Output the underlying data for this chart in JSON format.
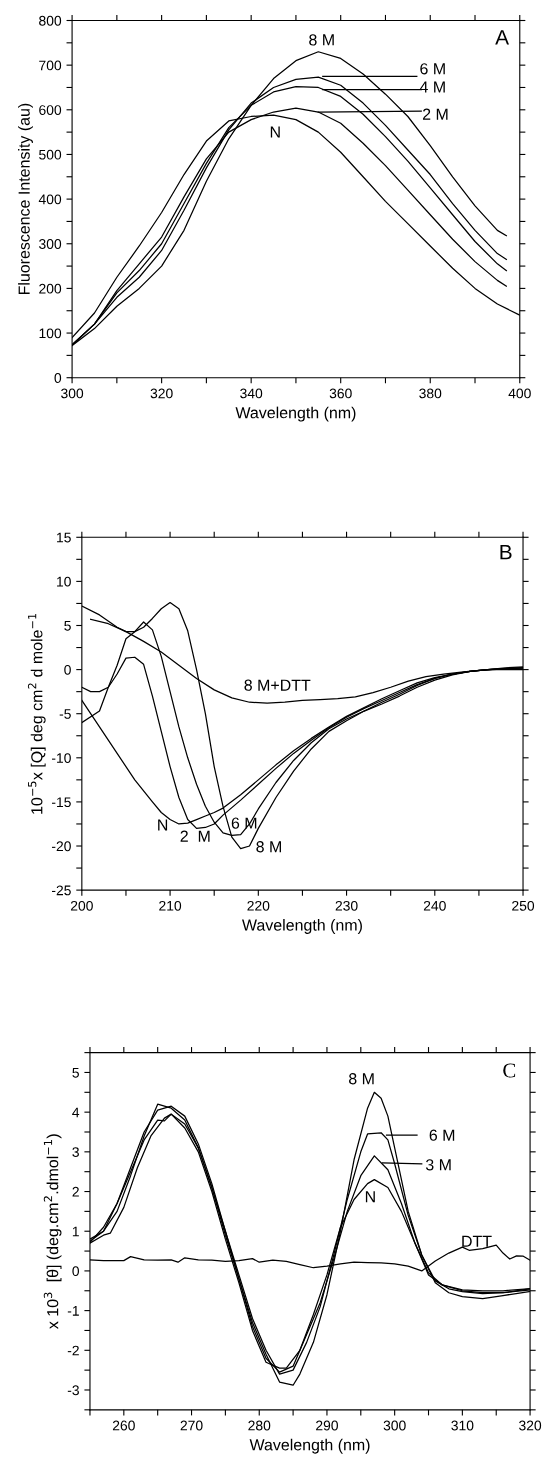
{
  "chart_data": [
    {
      "type": "line",
      "xlabel": "Wavelength (nm)",
      "ylabel": "Fluorescence Intensity (au)",
      "xlim": [
        300,
        400
      ],
      "ylim": [
        0,
        800
      ],
      "xticks": [
        300,
        {
          "value": 310,
          "label": null
        },
        320,
        {
          "value": 330,
          "label": null
        },
        340,
        {
          "value": 350,
          "label": null
        },
        360,
        {
          "value": 370,
          "label": null
        },
        380,
        {
          "value": 390,
          "label": null
        },
        400
      ],
      "yticks": [
        0,
        {
          "value": 50,
          "label": null
        },
        100,
        {
          "value": 150,
          "label": null
        },
        200,
        {
          "value": 250,
          "label": null
        },
        300,
        {
          "value": 350,
          "label": null
        },
        400,
        {
          "value": 450,
          "label": null
        },
        500,
        {
          "value": 550,
          "label": null
        },
        600,
        {
          "value": 650,
          "label": null
        },
        700,
        {
          "value": 750,
          "label": null
        },
        800
      ],
      "grid": false,
      "marker": "none",
      "line_style": "solid",
      "series": [
        {
          "color": "#000000",
          "x": [
            300,
            305,
            310,
            315,
            320,
            325,
            330,
            335,
            340,
            345,
            350,
            355,
            360,
            365,
            370,
            375,
            380,
            385,
            390,
            395,
            400
          ],
          "values": [
            90,
            145,
            225,
            295,
            370,
            455,
            530,
            575,
            585,
            588,
            578,
            550,
            505,
            450,
            395,
            345,
            295,
            245,
            200,
            165,
            140
          ]
        },
        {
          "color": "#000000",
          "x": [
            300,
            305,
            310,
            315,
            320,
            325,
            330,
            335,
            340,
            345,
            350,
            355,
            360,
            365,
            370,
            375,
            380,
            385,
            390,
            395,
            397
          ],
          "values": [
            72,
            110,
            160,
            200,
            250,
            330,
            440,
            535,
            610,
            670,
            710,
            730,
            715,
            680,
            635,
            585,
            520,
            450,
            385,
            330,
            318
          ]
        },
        {
          "color": "#000000",
          "x": [
            300,
            305,
            310,
            315,
            320,
            325,
            330,
            335,
            340,
            345,
            350,
            355,
            360,
            365,
            370,
            375,
            380,
            385,
            390,
            395,
            397
          ],
          "values": [
            74,
            120,
            180,
            225,
            285,
            375,
            470,
            555,
            615,
            650,
            668,
            673,
            655,
            615,
            565,
            510,
            455,
            390,
            330,
            278,
            265
          ]
        },
        {
          "color": "#000000",
          "x": [
            300,
            305,
            310,
            315,
            320,
            325,
            330,
            335,
            340,
            345,
            350,
            355,
            360,
            365,
            370,
            375,
            380,
            385,
            390,
            395,
            397
          ],
          "values": [
            74,
            120,
            190,
            240,
            300,
            390,
            480,
            560,
            610,
            640,
            652,
            650,
            630,
            590,
            540,
            485,
            425,
            365,
            305,
            255,
            240
          ]
        },
        {
          "color": "#000000",
          "x": [
            300,
            305,
            310,
            315,
            320,
            325,
            330,
            335,
            340,
            345,
            350,
            355,
            360,
            365,
            370,
            375,
            380,
            385,
            390,
            395,
            397
          ],
          "values": [
            73,
            120,
            195,
            255,
            315,
            405,
            490,
            550,
            578,
            595,
            604,
            595,
            570,
            525,
            475,
            420,
            365,
            310,
            260,
            218,
            205
          ]
        },
        {
          "color": "#000000",
          "x": [
            356,
            377
          ],
          "values": [
            675,
            675
          ]
        },
        {
          "color": "#000000",
          "x": [
            356,
            378
          ],
          "values": [
            645,
            645
          ]
        },
        {
          "color": "#000000",
          "x": [
            355,
            378
          ],
          "values": [
            595,
            597
          ]
        }
      ],
      "annotations": [
        "8 M",
        "6 M",
        "4 M",
        "2 M",
        "N",
        "A"
      ]
    },
    {
      "type": "line",
      "xlabel": "Wavelength (nm)",
      "ylabel": "10$^{−5}$x [Q] deg cm$^{2}$ d mole$^{−1}$",
      "xlim": [
        200,
        250
      ],
      "ylim": [
        -25,
        15
      ],
      "xticks": [
        200,
        {
          "value": 205,
          "label": null
        },
        210,
        {
          "value": 215,
          "label": null
        },
        220,
        {
          "value": 225,
          "label": null
        },
        230,
        {
          "value": 235,
          "label": null
        },
        240,
        {
          "value": 245,
          "label": null
        },
        250
      ],
      "yticks": [
        -25,
        {
          "value": -22.5,
          "label": null
        },
        -20,
        {
          "value": -17.5,
          "label": null
        },
        -15,
        {
          "value": -12.5,
          "label": null
        },
        -10,
        {
          "value": -7.5,
          "label": null
        },
        -5,
        {
          "value": -2.5,
          "label": null
        },
        0,
        {
          "value": 2.5,
          "label": null
        },
        5,
        {
          "value": 7.5,
          "label": null
        },
        10,
        {
          "value": 12.5,
          "label": null
        },
        15
      ],
      "grid": false,
      "marker": "none",
      "line_style": "solid",
      "series": [
        {
          "color": "#000000",
          "x": [
            200,
            202,
            204,
            206,
            208,
            209,
            210,
            211,
            212,
            213,
            214,
            215,
            216,
            218,
            220,
            222,
            224,
            226,
            228,
            230,
            232,
            234,
            236,
            238,
            240,
            242,
            244,
            246,
            248,
            250
          ],
          "values": [
            -3.5,
            -6.5,
            -9.5,
            -12.5,
            -15,
            -16.2,
            -17,
            -17.5,
            -17.4,
            -17,
            -16.6,
            -16.2,
            -15.7,
            -14.2,
            -12.5,
            -10.8,
            -9.2,
            -7.8,
            -6.5,
            -5.3,
            -4.3,
            -3.3,
            -2.4,
            -1.5,
            -0.9,
            -0.5,
            -0.2,
            0,
            0.1,
            0.2
          ]
        },
        {
          "color": "#000000",
          "x": [
            200,
            201,
            202,
            203,
            204,
            205,
            206,
            207,
            208,
            209,
            210,
            211,
            212,
            213,
            214,
            215,
            216,
            218,
            220,
            222,
            224,
            226,
            228,
            230,
            232,
            234,
            236,
            238,
            240,
            242,
            244,
            246,
            248,
            250
          ],
          "values": [
            -2,
            -2.5,
            -2.5,
            -2,
            -0.5,
            1.3,
            1.4,
            0.6,
            -3,
            -7,
            -11,
            -14.5,
            -17,
            -18,
            -17.9,
            -17.5,
            -16.5,
            -14.8,
            -13,
            -11.2,
            -9.5,
            -8,
            -6.6,
            -5.4,
            -4.4,
            -3.5,
            -2.6,
            -1.7,
            -1,
            -0.5,
            -0.2,
            0,
            0.2,
            0.3
          ]
        },
        {
          "color": "#000000",
          "x": [
            200,
            202,
            203,
            204,
            205,
            206,
            207,
            208,
            209,
            210,
            211,
            212,
            213,
            214,
            215,
            216,
            217,
            218,
            219,
            220,
            222,
            224,
            226,
            228,
            230,
            232,
            234,
            236,
            238,
            240,
            242,
            244,
            246,
            248,
            250
          ],
          "values": [
            -6,
            -4.7,
            -2,
            0.5,
            3.5,
            4.3,
            5.4,
            4.5,
            1.5,
            -2.5,
            -6.5,
            -10,
            -13,
            -15.5,
            -17.3,
            -18.5,
            -18.8,
            -18.7,
            -17.5,
            -15.8,
            -12.8,
            -10.3,
            -8.3,
            -6.7,
            -5.6,
            -4.7,
            -3.9,
            -3,
            -2,
            -1.2,
            -0.6,
            -0.2,
            0,
            0.1,
            0.2
          ]
        },
        {
          "color": "#000000",
          "x": [
            200,
            202,
            204,
            205,
            206,
            207,
            208,
            209,
            210,
            211,
            212,
            213,
            214,
            215,
            216,
            217,
            218,
            219,
            220,
            222,
            224,
            226,
            228,
            230,
            232,
            234,
            236,
            238,
            240,
            242,
            244,
            246,
            248,
            250
          ],
          "values": [
            7.2,
            6.2,
            4.8,
            4.3,
            4.3,
            4.8,
            5.8,
            6.9,
            7.6,
            6.9,
            4.4,
            0,
            -5,
            -11,
            -15.5,
            -19,
            -20.3,
            -20,
            -18,
            -14.5,
            -11.5,
            -9,
            -7,
            -5.8,
            -4.7,
            -3.7,
            -2.8,
            -1.8,
            -1,
            -0.5,
            -0.2,
            0,
            0.1,
            0.2
          ]
        },
        {
          "color": "#000000",
          "x": [
            201,
            203,
            205,
            207,
            209,
            211,
            213,
            215,
            217,
            219,
            221,
            223,
            225,
            227,
            229,
            231,
            233,
            235,
            237,
            239,
            241,
            243,
            245,
            247,
            250
          ],
          "values": [
            5.7,
            5.2,
            4.3,
            3.2,
            2,
            0.5,
            -1,
            -2.3,
            -3.2,
            -3.7,
            -3.8,
            -3.7,
            -3.5,
            -3.4,
            -3.3,
            -3.1,
            -2.6,
            -2,
            -1.3,
            -0.8,
            -0.5,
            -0.3,
            -0.1,
            0,
            0
          ]
        }
      ],
      "annotations": [
        "8 M+DTT",
        "N",
        "2  M",
        "6 M",
        "8 M",
        "B"
      ]
    },
    {
      "type": "line",
      "xlabel": "Wavelength (nm)",
      "ylabel": "x 10$^{3}$  [θ] (deg.cm$^{2}$.dmol$^{−1}$)",
      "xlim": [
        255,
        320
      ],
      "ylim": [
        -3.5,
        5.5
      ],
      "xticks": [
        {
          "value": 255,
          "label": null
        },
        260,
        {
          "value": 265,
          "label": null
        },
        270,
        {
          "value": 275,
          "label": null
        },
        280,
        {
          "value": 285,
          "label": null
        },
        290,
        {
          "value": 295,
          "label": null
        },
        300,
        {
          "value": 305,
          "label": null
        },
        310,
        {
          "value": 315,
          "label": null
        },
        320
      ],
      "yticks": [
        {
          "value": -3.5,
          "label": null
        },
        -3,
        {
          "value": -2.5,
          "label": null
        },
        -2,
        {
          "value": -1.5,
          "label": null
        },
        -1,
        {
          "value": -0.5,
          "label": null
        },
        0,
        {
          "value": 0.5,
          "label": null
        },
        1,
        {
          "value": 1.5,
          "label": null
        },
        2,
        {
          "value": 2.5,
          "label": null
        },
        3,
        {
          "value": 3.5,
          "label": null
        },
        4,
        {
          "value": 4.5,
          "label": null
        },
        5,
        {
          "value": 5.5,
          "label": null
        }
      ],
      "grid": false,
      "marker": "none",
      "line_style": "solid",
      "series": [
        {
          "color": "#000000",
          "x": [
            255,
            257,
            259,
            261,
            263,
            265,
            267,
            269,
            271,
            273,
            275,
            277,
            279,
            281,
            283,
            285,
            286,
            288,
            290,
            292,
            294,
            296,
            297,
            298,
            299,
            300,
            302,
            304,
            306,
            308,
            310,
            313,
            316,
            320
          ],
          "values": [
            0.75,
            1.0,
            1.5,
            2.4,
            3.4,
            4.2,
            4.1,
            3.8,
            3.1,
            2.1,
            0.9,
            -0.2,
            -1.3,
            -2.1,
            -2.8,
            -2.88,
            -2.6,
            -1.8,
            -0.6,
            1.0,
            2.8,
            4.1,
            4.5,
            4.35,
            3.9,
            3.1,
            1.5,
            0.4,
            -0.3,
            -0.55,
            -0.65,
            -0.7,
            -0.62,
            -0.52
          ]
        },
        {
          "color": "#000000",
          "x": [
            255,
            257,
            259,
            261,
            263,
            265,
            267,
            269,
            271,
            273,
            275,
            277,
            279,
            281,
            283,
            285,
            287,
            289,
            291,
            293,
            295,
            296,
            298,
            299,
            300,
            302,
            304,
            306,
            308,
            310,
            313,
            316,
            320
          ],
          "values": [
            0.8,
            1.0,
            1.7,
            2.6,
            3.5,
            4.05,
            4.15,
            3.9,
            3.2,
            2.2,
            1.0,
            -0.1,
            -1.2,
            -2.0,
            -2.6,
            -2.5,
            -1.8,
            -0.9,
            0.4,
            1.8,
            3.0,
            3.45,
            3.48,
            3.3,
            2.7,
            1.4,
            0.4,
            -0.25,
            -0.45,
            -0.52,
            -0.57,
            -0.55,
            -0.45
          ]
        },
        {
          "color": "#000000",
          "x": [
            255,
            257,
            258,
            260,
            262,
            264,
            266,
            267,
            269,
            271,
            273,
            275,
            277,
            279,
            281,
            283,
            285,
            287,
            289,
            291,
            293,
            295,
            297,
            299,
            301,
            303,
            305,
            307,
            310,
            313,
            316,
            320
          ],
          "values": [
            0.7,
            0.9,
            0.95,
            1.6,
            2.6,
            3.4,
            3.85,
            3.95,
            3.7,
            3.1,
            2.1,
            1.0,
            -0.2,
            -1.4,
            -2.2,
            -2.55,
            -2.4,
            -1.6,
            -0.8,
            0.3,
            1.5,
            2.4,
            2.9,
            2.55,
            1.7,
            0.7,
            -0.05,
            -0.35,
            -0.5,
            -0.55,
            -0.55,
            -0.48
          ]
        },
        {
          "color": "#000000",
          "x": [
            255,
            257,
            259,
            261,
            263,
            265,
            266,
            267,
            269,
            271,
            273,
            275,
            277,
            279,
            281,
            283,
            284,
            286,
            288,
            290,
            292,
            294,
            296,
            297,
            299,
            301,
            303,
            305,
            307,
            310,
            313,
            316,
            320
          ],
          "values": [
            0.72,
            1.1,
            1.7,
            2.5,
            3.3,
            3.8,
            3.78,
            3.95,
            3.6,
            3.0,
            2.0,
            0.8,
            -0.3,
            -1.5,
            -2.3,
            -2.45,
            -2.45,
            -2.0,
            -1.1,
            -0.1,
            1.1,
            1.8,
            2.2,
            2.3,
            2.1,
            1.5,
            0.7,
            -0.1,
            -0.35,
            -0.48,
            -0.5,
            -0.5,
            -0.45
          ]
        },
        {
          "color": "#000000",
          "x": [
            255,
            257,
            260,
            261,
            263,
            265,
            267,
            268,
            269,
            271,
            273,
            275,
            277,
            279,
            280,
            282,
            284,
            286,
            288,
            290,
            292,
            294,
            296,
            298,
            300,
            302,
            304,
            306,
            308,
            310,
            311,
            313,
            315,
            316,
            317,
            318,
            319,
            320
          ],
          "values": [
            0.28,
            0.26,
            0.26,
            0.36,
            0.28,
            0.27,
            0.28,
            0.22,
            0.33,
            0.28,
            0.27,
            0.24,
            0.26,
            0.31,
            0.22,
            0.27,
            0.24,
            0.16,
            0.08,
            0.12,
            0.18,
            0.22,
            0.21,
            0.2,
            0.18,
            0.12,
            0.0,
            0.25,
            0.45,
            0.6,
            0.52,
            0.56,
            0.65,
            0.45,
            0.3,
            0.38,
            0.37,
            0.27
          ]
        },
        {
          "color": "#000000",
          "x": [
            298.8,
            303.3
          ],
          "values": [
            3.42,
            3.42
          ]
        },
        {
          "color": "#000000",
          "x": [
            298.2,
            304.0
          ],
          "values": [
            2.72,
            2.7
          ]
        }
      ],
      "annotations": [
        "8 M",
        "6 M",
        "3 M",
        "N",
        "DTT",
        "C"
      ]
    }
  ]
}
